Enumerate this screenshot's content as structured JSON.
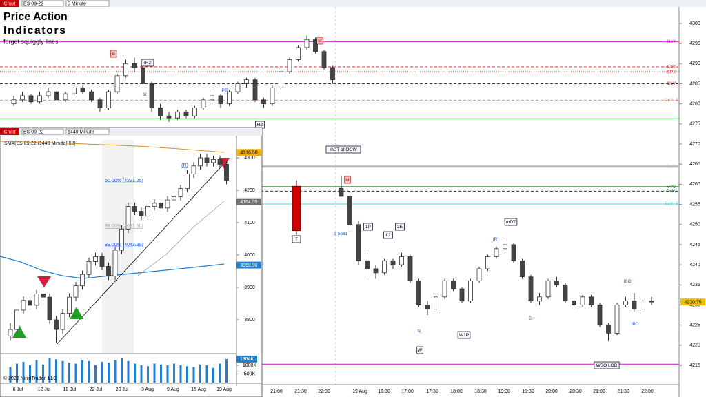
{
  "toolbars": [
    {
      "button": "Chart",
      "instrument": "ES 09-22",
      "interval": "5 Minute"
    },
    {
      "button": "Chart",
      "instrument": "ES 09-22",
      "interval": "1440 Minute"
    }
  ],
  "chart_data": [
    {
      "type": "candlestick",
      "title_lines": [
        "Price Action",
        "Indicators"
      ],
      "subtitle": "forget squiggly lines",
      "time_axis_labels": [
        "21:00",
        "21:30",
        "22:00",
        "19 Aug",
        "16:30",
        "17:00",
        "17:30",
        "18:00",
        "18:30",
        "19:00",
        "19:30",
        "20:00",
        "20:30",
        "21:00",
        "21:30",
        "22:00"
      ],
      "ylim": [
        4208.5,
        4304.1
      ],
      "yticks": [
        4215,
        4220,
        4225,
        4230,
        4235,
        4240,
        4245,
        4250,
        4255,
        4260,
        4265,
        4270,
        4275,
        4280,
        4285,
        4290,
        4295,
        4300
      ],
      "last_price": 4230.75,
      "prior_bar": [
        4259.5,
        4261,
        4247.5,
        4248.5
      ],
      "prior_bar_label": "T",
      "ohlc": [
        [
          4280,
          4282,
          4279.5,
          4281
        ],
        [
          4281,
          4283,
          4280.5,
          4282
        ],
        [
          4282,
          4282.5,
          4280,
          4280.5
        ],
        [
          4280.5,
          4283,
          4280,
          4282
        ],
        [
          4282,
          4284,
          4281.5,
          4283
        ],
        [
          4283,
          4283.5,
          4280.5,
          4281
        ],
        [
          4281,
          4283,
          4280.5,
          4282.5
        ],
        [
          4282.5,
          4285,
          4282,
          4284
        ],
        [
          4284,
          4284.5,
          4282.5,
          4283
        ],
        [
          4283,
          4283.5,
          4280.5,
          4281
        ],
        [
          4281,
          4281.5,
          4278,
          4279
        ],
        [
          4279,
          4283.5,
          4278.5,
          4283
        ],
        [
          4283,
          4287.5,
          4282.5,
          4287
        ],
        [
          4287,
          4291,
          4286.5,
          4290
        ],
        [
          4290,
          4291.5,
          4288,
          4289
        ],
        [
          4289,
          4289.5,
          4284.5,
          4285
        ],
        [
          4285,
          4285.5,
          4278,
          4279
        ],
        [
          4279,
          4280,
          4276,
          4277
        ],
        [
          4277,
          4278,
          4275.5,
          4276.5
        ],
        [
          4276.5,
          4278.5,
          4276,
          4278
        ],
        [
          4278,
          4278.5,
          4276.5,
          4277
        ],
        [
          4277,
          4279.5,
          4276.5,
          4279
        ],
        [
          4279,
          4281.5,
          4278.5,
          4281
        ],
        [
          4281,
          4283,
          4280.5,
          4282
        ],
        [
          4282,
          4282.5,
          4279,
          4280
        ],
        [
          4280,
          4283.5,
          4279.5,
          4283
        ],
        [
          4283,
          4285.5,
          4282.5,
          4285
        ],
        [
          4285,
          4286.5,
          4284,
          4286
        ],
        [
          4286,
          4286.5,
          4280.5,
          4281
        ],
        [
          4281,
          4281.5,
          4279,
          4280
        ],
        [
          4280,
          4284.5,
          4279.5,
          4284
        ],
        [
          4284,
          4288.5,
          4283.5,
          4288
        ],
        [
          4288,
          4291.5,
          4287.5,
          4291
        ],
        [
          4291,
          4294.5,
          4290.5,
          4294
        ],
        [
          4294,
          4297,
          4293.5,
          4296
        ],
        [
          4296,
          4296.5,
          4292.5,
          4293
        ],
        [
          4293,
          4293.5,
          4288.5,
          4289
        ],
        [
          4289,
          4289.5,
          4285,
          4286
        ],
        [
          4259,
          4262,
          4257,
          4257
        ],
        [
          4257,
          4258,
          4249,
          4250
        ],
        [
          4250,
          4251,
          4240,
          4241
        ],
        [
          4241,
          4243,
          4237,
          4239
        ],
        [
          4239,
          4240,
          4236.5,
          4238
        ],
        [
          4238,
          4241.5,
          4237.5,
          4241
        ],
        [
          4241,
          4241.5,
          4239,
          4240
        ],
        [
          4240,
          4243,
          4239.5,
          4242
        ],
        [
          4242,
          4242.5,
          4235.5,
          4236
        ],
        [
          4236,
          4236.5,
          4229.5,
          4230
        ],
        [
          4230,
          4231,
          4227.5,
          4229
        ],
        [
          4229,
          4232.5,
          4228.5,
          4232
        ],
        [
          4232,
          4236.5,
          4231.5,
          4236
        ],
        [
          4236,
          4236.5,
          4233.5,
          4234
        ],
        [
          4234,
          4234.5,
          4230.5,
          4231
        ],
        [
          4231,
          4236.5,
          4230.5,
          4236
        ],
        [
          4236,
          4239.5,
          4235.5,
          4239
        ],
        [
          4239,
          4242.5,
          4238.5,
          4242
        ],
        [
          4242,
          4244.5,
          4241.5,
          4244
        ],
        [
          4244,
          4246,
          4243.5,
          4245
        ],
        [
          4245,
          4245.5,
          4240.5,
          4241
        ],
        [
          4241,
          4241.5,
          4236.5,
          4237
        ],
        [
          4237,
          4237.5,
          4230.5,
          4231
        ],
        [
          4231,
          4233,
          4230,
          4232
        ],
        [
          4232,
          4236.5,
          4231.5,
          4236
        ],
        [
          4236,
          4237,
          4234.5,
          4235
        ],
        [
          4235,
          4235.5,
          4230.5,
          4231
        ],
        [
          4231,
          4231.5,
          4229,
          4230
        ],
        [
          4230,
          4232.5,
          4229.5,
          4232
        ],
        [
          4232,
          4232.5,
          4229.5,
          4230
        ],
        [
          4230,
          4230.5,
          4224.5,
          4225
        ],
        [
          4225,
          4225.5,
          4221,
          4223
        ],
        [
          4223,
          4230.5,
          4222.5,
          4230
        ],
        [
          4230,
          4232,
          4229.5,
          4231
        ],
        [
          4231,
          4233,
          4228.5,
          4229
        ],
        [
          4229,
          4231.5,
          4228.5,
          4231
        ],
        [
          4231,
          4232,
          4230,
          4230.75
        ]
      ],
      "levels": [
        {
          "label": "HoY",
          "value": 4295.5,
          "color": "#d400d4",
          "style": "solid"
        },
        {
          "label": "CoY",
          "value": 4289.2,
          "color": "#e03030",
          "style": "dashed"
        },
        {
          "label": "SPX",
          "value": 4288,
          "color": "#e03030",
          "style": "dotted"
        },
        {
          "label": "CoY",
          "value": 4285,
          "color": "#b00000",
          "style": "dashed"
        },
        {
          "label": "CoY -1",
          "value": 4280.9,
          "color": "#f08080",
          "style": "dashed"
        },
        {
          "label": "LoY",
          "value": 4264.4,
          "color": "#b8b8b8",
          "style": "thick"
        },
        {
          "label": "GoD",
          "value": 4259.4,
          "color": "#208020",
          "style": "solid"
        },
        {
          "label": "OoW",
          "value": 4258.3,
          "color": "#104010",
          "style": "dashed"
        },
        {
          "label": "LoY -1",
          "value": 4255.1,
          "color": "#40d0e0",
          "style": "solid"
        },
        {
          "value": 4276.3,
          "color": "#30c030",
          "style": "solid"
        },
        {
          "value": 4215.3,
          "color": "#d400d4",
          "style": "solid"
        }
      ],
      "annotations": [
        "E",
        "IH2",
        "PB",
        "H2",
        "M",
        "mDT at OOW",
        "M",
        "3  Sell1",
        "1P",
        "L2",
        "2E",
        "(R)",
        "mDT",
        "R",
        "W1P",
        "W",
        "WBO LOD",
        "IBO",
        "IBO",
        "1t",
        "5t"
      ]
    },
    {
      "type": "candlestick",
      "title": "SMA(ES 09-22 (1440 Minute),50)",
      "time_axis_labels": [
        "6 Jul",
        "12 Jul",
        "18 Jul",
        "22 Jul",
        "28 Jul",
        "3 Aug",
        "9 Aug",
        "15 Aug",
        "19 Aug"
      ],
      "ylim": [
        3697.9,
        4355.3
      ],
      "yticks": [
        3800,
        3900,
        4000,
        4100,
        4200,
        4300
      ],
      "price_tags": [
        {
          "value": 4316.5,
          "label": "4316.50",
          "color": "#f0b000"
        },
        {
          "value": 4164.55,
          "color": "#707070"
        },
        {
          "value": 3968.96,
          "color": "#2080d0"
        }
      ],
      "ohlc": [
        [
          3750,
          3790,
          3735,
          3770
        ],
        [
          3770,
          3842,
          3758,
          3830
        ],
        [
          3830,
          3872,
          3818,
          3860
        ],
        [
          3860,
          3872,
          3833,
          3845
        ],
        [
          3845,
          3892,
          3833,
          3880
        ],
        [
          3880,
          3892,
          3858,
          3870
        ],
        [
          3870,
          3882,
          3788,
          3800
        ],
        [
          3800,
          3812,
          3730,
          3770
        ],
        [
          3770,
          3832,
          3758,
          3820
        ],
        [
          3820,
          3882,
          3808,
          3870
        ],
        [
          3870,
          3917,
          3858,
          3905
        ],
        [
          3905,
          3952,
          3893,
          3940
        ],
        [
          3940,
          3992,
          3928,
          3980
        ],
        [
          3980,
          4007,
          3968,
          3995
        ],
        [
          3995,
          4007,
          3953,
          3965
        ],
        [
          3965,
          3977,
          3923,
          3935
        ],
        [
          3935,
          4027,
          3923,
          4015
        ],
        [
          4015,
          4092,
          4003,
          4080
        ],
        [
          4080,
          4162,
          4068,
          4150
        ],
        [
          4150,
          4162,
          4123,
          4135
        ],
        [
          4135,
          4147,
          4108,
          4120
        ],
        [
          4120,
          4162,
          4108,
          4150
        ],
        [
          4150,
          4172,
          4138,
          4160
        ],
        [
          4160,
          4172,
          4133,
          4145
        ],
        [
          4145,
          4182,
          4133,
          4170
        ],
        [
          4170,
          4192,
          4158,
          4180
        ],
        [
          4180,
          4217,
          4168,
          4205
        ],
        [
          4205,
          4262,
          4193,
          4250
        ],
        [
          4250,
          4287,
          4238,
          4275
        ],
        [
          4275,
          4312,
          4263,
          4300
        ],
        [
          4300,
          4312,
          4273,
          4285
        ],
        [
          4285,
          4307,
          4273,
          4295
        ],
        [
          4295,
          4307,
          4268,
          4280
        ],
        [
          4280,
          4292,
          4218,
          4230
        ]
      ],
      "volume": [
        900,
        1100,
        1200,
        1000,
        1300,
        1050,
        1400,
        1350,
        1250,
        1150,
        1100,
        1300,
        1250,
        1000,
        1200,
        1150,
        1300,
        1400,
        1250,
        1100,
        1000,
        950,
        1100,
        1050,
        1000,
        1100,
        1000,
        950,
        900,
        1050,
        1000,
        850,
        1100,
        1364
      ],
      "volume_lim": [
        0,
        2200
      ],
      "volume_ticks": [
        {
          "value": 1000,
          "label": "1000K"
        },
        {
          "value": 500,
          "label": "500K"
        }
      ],
      "volume_tag": {
        "value": 1364,
        "label": "1364K"
      },
      "annotations": [
        "50.00% (4221.25)",
        "38.00% (4081.50)",
        "33.00% (4043.39)",
        "(R)"
      ]
    }
  ],
  "copyright": "© 2022 NinjaTrader, LLC"
}
